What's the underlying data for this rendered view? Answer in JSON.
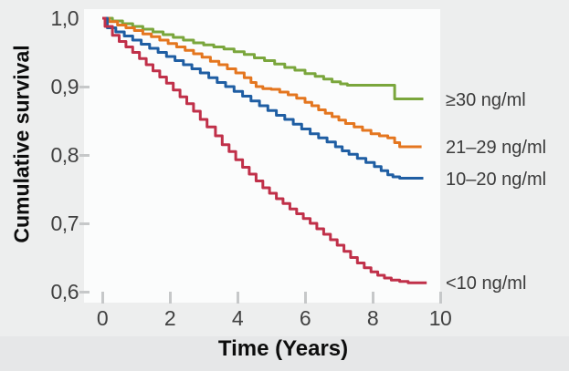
{
  "chart_data": {
    "type": "line",
    "subtype": "kaplan-meier-step",
    "title": "",
    "xlabel": "Time (Years)",
    "ylabel": "Cumulative survival",
    "xlim": [
      0,
      10
    ],
    "ylim": [
      0.6,
      1.0
    ],
    "grid": false,
    "legend_position": "right-outside",
    "x_ticks": [
      {
        "value": 0,
        "label": "0"
      },
      {
        "value": 2,
        "label": "2"
      },
      {
        "value": 4,
        "label": "4"
      },
      {
        "value": 6,
        "label": "6"
      },
      {
        "value": 8,
        "label": "8"
      },
      {
        "value": 10,
        "label": "10"
      }
    ],
    "y_ticks": [
      {
        "value": 1.0,
        "label": "1,0"
      },
      {
        "value": 0.9,
        "label": "0,9"
      },
      {
        "value": 0.8,
        "label": "0,8"
      },
      {
        "value": 0.7,
        "label": "0,7"
      },
      {
        "value": 0.6,
        "label": "0,6"
      }
    ],
    "series": [
      {
        "name": "≥30 ng/ml",
        "color": "#7aa63c",
        "points": [
          [
            0,
            1.0
          ],
          [
            0.3,
            0.996
          ],
          [
            0.6,
            0.992
          ],
          [
            0.9,
            0.988
          ],
          [
            1.2,
            0.984
          ],
          [
            1.5,
            0.98
          ],
          [
            1.8,
            0.976
          ],
          [
            2.1,
            0.972
          ],
          [
            2.4,
            0.968
          ],
          [
            2.7,
            0.964
          ],
          [
            3.0,
            0.961
          ],
          [
            3.3,
            0.958
          ],
          [
            3.6,
            0.955
          ],
          [
            3.9,
            0.951
          ],
          [
            4.2,
            0.947
          ],
          [
            4.5,
            0.942
          ],
          [
            4.8,
            0.938
          ],
          [
            5.1,
            0.933
          ],
          [
            5.4,
            0.928
          ],
          [
            5.7,
            0.924
          ],
          [
            6.0,
            0.919
          ],
          [
            6.3,
            0.915
          ],
          [
            6.55,
            0.911
          ],
          [
            6.8,
            0.907
          ],
          [
            7.05,
            0.904
          ],
          [
            7.25,
            0.902
          ],
          [
            8.65,
            0.882
          ],
          [
            9.5,
            0.882
          ]
        ]
      },
      {
        "name": "21–29 ng/ml",
        "color": "#e4761f",
        "points": [
          [
            0,
            1.0
          ],
          [
            0.2,
            0.995
          ],
          [
            0.45,
            0.99
          ],
          [
            0.7,
            0.986
          ],
          [
            0.95,
            0.982
          ],
          [
            1.2,
            0.977
          ],
          [
            1.45,
            0.973
          ],
          [
            1.7,
            0.968
          ],
          [
            1.95,
            0.963
          ],
          [
            2.2,
            0.958
          ],
          [
            2.45,
            0.953
          ],
          [
            2.7,
            0.948
          ],
          [
            2.95,
            0.943
          ],
          [
            3.2,
            0.937
          ],
          [
            3.45,
            0.932
          ],
          [
            3.7,
            0.926
          ],
          [
            3.95,
            0.92
          ],
          [
            4.2,
            0.913
          ],
          [
            4.4,
            0.906
          ],
          [
            4.55,
            0.9
          ],
          [
            4.75,
            0.897
          ],
          [
            5.0,
            0.896
          ],
          [
            5.25,
            0.892
          ],
          [
            5.5,
            0.888
          ],
          [
            5.75,
            0.883
          ],
          [
            6.0,
            0.877
          ],
          [
            6.2,
            0.872
          ],
          [
            6.4,
            0.866
          ],
          [
            6.6,
            0.861
          ],
          [
            6.8,
            0.856
          ],
          [
            7.0,
            0.851
          ],
          [
            7.2,
            0.846
          ],
          [
            7.45,
            0.841
          ],
          [
            7.7,
            0.836
          ],
          [
            7.95,
            0.831
          ],
          [
            8.2,
            0.828
          ],
          [
            8.45,
            0.825
          ],
          [
            8.65,
            0.818
          ],
          [
            8.8,
            0.812
          ],
          [
            9.45,
            0.812
          ]
        ]
      },
      {
        "name": "10–20 ng/ml",
        "color": "#1f5ea3",
        "points": [
          [
            0,
            1.0
          ],
          [
            0.15,
            0.986
          ],
          [
            0.4,
            0.98
          ],
          [
            0.65,
            0.974
          ],
          [
            0.9,
            0.968
          ],
          [
            1.15,
            0.962
          ],
          [
            1.4,
            0.956
          ],
          [
            1.65,
            0.95
          ],
          [
            1.9,
            0.944
          ],
          [
            2.15,
            0.938
          ],
          [
            2.4,
            0.932
          ],
          [
            2.65,
            0.926
          ],
          [
            2.9,
            0.92
          ],
          [
            3.15,
            0.913
          ],
          [
            3.4,
            0.906
          ],
          [
            3.65,
            0.9
          ],
          [
            3.9,
            0.893
          ],
          [
            4.15,
            0.886
          ],
          [
            4.4,
            0.879
          ],
          [
            4.65,
            0.872
          ],
          [
            4.9,
            0.865
          ],
          [
            5.15,
            0.858
          ],
          [
            5.4,
            0.852
          ],
          [
            5.65,
            0.845
          ],
          [
            5.9,
            0.838
          ],
          [
            6.15,
            0.831
          ],
          [
            6.4,
            0.825
          ],
          [
            6.65,
            0.819
          ],
          [
            6.9,
            0.812
          ],
          [
            7.1,
            0.806
          ],
          [
            7.3,
            0.801
          ],
          [
            7.55,
            0.795
          ],
          [
            7.8,
            0.789
          ],
          [
            8.05,
            0.783
          ],
          [
            8.25,
            0.777
          ],
          [
            8.45,
            0.771
          ],
          [
            8.6,
            0.768
          ],
          [
            8.8,
            0.766
          ],
          [
            9.5,
            0.766
          ]
        ]
      },
      {
        "name": "<10 ng/ml",
        "color": "#c03049",
        "points": [
          [
            0,
            1.0
          ],
          [
            0.08,
            0.988
          ],
          [
            0.3,
            0.975
          ],
          [
            0.5,
            0.966
          ],
          [
            0.7,
            0.958
          ],
          [
            0.9,
            0.95
          ],
          [
            1.1,
            0.941
          ],
          [
            1.3,
            0.932
          ],
          [
            1.5,
            0.923
          ],
          [
            1.7,
            0.914
          ],
          [
            1.9,
            0.905
          ],
          [
            2.1,
            0.895
          ],
          [
            2.3,
            0.885
          ],
          [
            2.5,
            0.875
          ],
          [
            2.7,
            0.864
          ],
          [
            2.9,
            0.852
          ],
          [
            3.1,
            0.841
          ],
          [
            3.35,
            0.828
          ],
          [
            3.55,
            0.815
          ],
          [
            3.75,
            0.805
          ],
          [
            3.95,
            0.793
          ],
          [
            4.15,
            0.782
          ],
          [
            4.35,
            0.772
          ],
          [
            4.55,
            0.762
          ],
          [
            4.75,
            0.752
          ],
          [
            4.95,
            0.744
          ],
          [
            5.15,
            0.736
          ],
          [
            5.35,
            0.729
          ],
          [
            5.55,
            0.721
          ],
          [
            5.75,
            0.714
          ],
          [
            5.95,
            0.707
          ],
          [
            6.15,
            0.7
          ],
          [
            6.35,
            0.692
          ],
          [
            6.55,
            0.684
          ],
          [
            6.75,
            0.676
          ],
          [
            6.95,
            0.668
          ],
          [
            7.15,
            0.659
          ],
          [
            7.35,
            0.65
          ],
          [
            7.55,
            0.642
          ],
          [
            7.75,
            0.635
          ],
          [
            7.95,
            0.629
          ],
          [
            8.15,
            0.624
          ],
          [
            8.35,
            0.62
          ],
          [
            8.55,
            0.617
          ],
          [
            8.8,
            0.615
          ],
          [
            9.05,
            0.613
          ],
          [
            9.6,
            0.613
          ]
        ]
      }
    ]
  }
}
